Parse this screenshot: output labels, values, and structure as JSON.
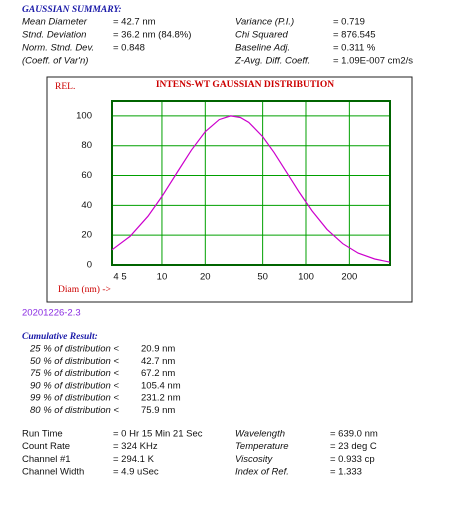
{
  "header": {
    "title": "GAUSSIAN SUMMARY:"
  },
  "summary": {
    "left": [
      [
        "Mean Diameter",
        "= 42.7  nm"
      ],
      [
        "Stnd. Deviation",
        "= 36.2  nm (84.8%)"
      ],
      [
        "Norm. Stnd. Dev.",
        "= 0.848"
      ],
      [
        "(Coeff. of Var'n)",
        null
      ]
    ],
    "right": [
      [
        "Variance (P.I.)",
        "= 0.719"
      ],
      [
        "Chi Squared",
        "= 876.545"
      ],
      [
        "Baseline Adj.",
        "= 0.311 %"
      ],
      [
        "Z-Avg. Diff. Coeff.",
        "= 1.09E-007 cm2/s"
      ]
    ]
  },
  "chart": {
    "type": "line",
    "title": "INTENS-WT GAUSSIAN DISTRIBUTION",
    "y_label": "REL.",
    "x_label": "Diam (nm) ->",
    "log_x": true,
    "color": "#cc00cc",
    "grid_color": "#00a000",
    "x": [
      4.5,
      6,
      8,
      10,
      13,
      16,
      20,
      25,
      30,
      35,
      40,
      50,
      60,
      75,
      90,
      110,
      140,
      180,
      230,
      300,
      383
    ],
    "values": [
      10.2,
      19.2,
      32.7,
      46.0,
      63.4,
      77.0,
      89.4,
      97.5,
      100,
      98.9,
      95.7,
      86.1,
      75.5,
      60.8,
      48.7,
      36.3,
      23.9,
      14.3,
      8.0,
      4.0,
      1.9
    ],
    "xlim": [
      4.5,
      383
    ],
    "ylim": [
      0,
      110
    ],
    "xticks": [
      {
        "value": 4.5,
        "label": "4 5"
      },
      10,
      20,
      50,
      100,
      200
    ],
    "yticks": [
      0,
      20,
      40,
      60,
      80,
      100
    ]
  },
  "sample_id": "20201226-2.3",
  "cumulative": {
    "title": "Cumulative Result:",
    "rows": [
      [
        "25 % of distribution <",
        "20.9 nm"
      ],
      [
        "50 % of distribution <",
        "42.7 nm"
      ],
      [
        "75 % of distribution <",
        "67.2 nm"
      ],
      [
        "90 % of distribution <",
        "105.4 nm"
      ],
      [
        "99 % of distribution <",
        "231.2 nm"
      ],
      [
        "80 % of distribution <",
        "75.9 nm"
      ]
    ]
  },
  "conditions": {
    "left": [
      [
        "Run Time",
        "= 0  Hr 15 Min 21 Sec"
      ],
      [
        "Count Rate",
        "= 324    KHz"
      ],
      [
        "Channel #1",
        "= 294.1  K"
      ],
      [
        "Channel Width",
        "= 4.9     uSec"
      ]
    ],
    "right": [
      [
        "Wavelength",
        "= 639.0  nm"
      ],
      [
        "Temperature",
        "= 23    deg C"
      ],
      [
        "Viscosity",
        "= 0.933  cp"
      ],
      [
        "Index of Ref.",
        "= 1.333"
      ]
    ]
  }
}
